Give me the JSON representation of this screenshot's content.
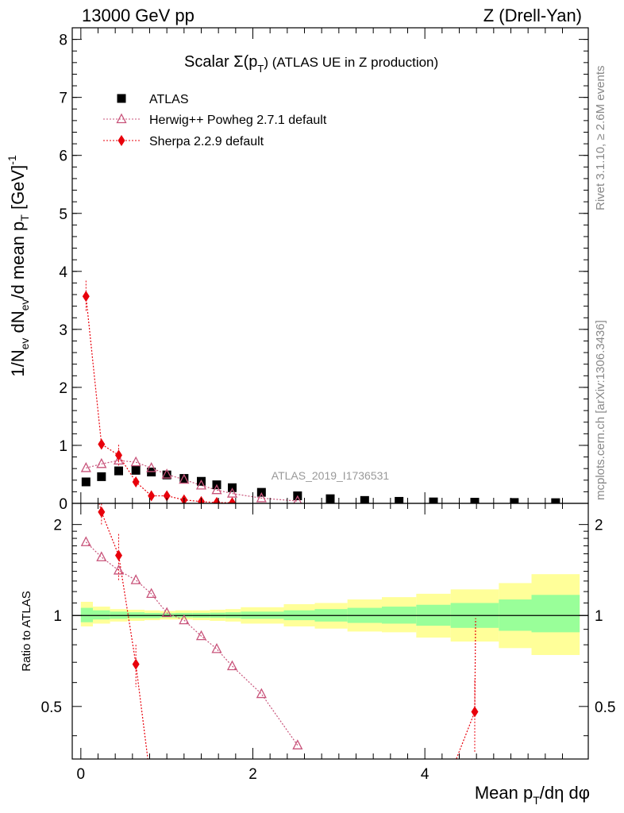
{
  "header": {
    "left": "13000 GeV pp",
    "right": "Z (Drell-Yan)"
  },
  "title": {
    "prefix": "Scalar Σ(p",
    "sub": "T",
    "suffix": ") (ATLAS UE in Z production)"
  },
  "side_labels": {
    "rivet": "Rivet 3.1.10, ≥ 2.6M events",
    "mcplots": "mcplots.cern.ch [arXiv:1306.3436]"
  },
  "analysis_id": "ATLAS_2019_I1736531",
  "main_ylabel": {
    "p1": "1/N",
    "s1": "ev",
    "p2": " dN",
    "s2": "ev",
    "p3": "/d mean p",
    "s3": "T",
    "p4": " [GeV]",
    "sup": "-1"
  },
  "ratio_ylabel": "Ratio to ATLAS",
  "xlabel": {
    "p1": "Mean p",
    "s1": "T",
    "p2": "/dη dφ"
  },
  "legend": [
    {
      "label": "ATLAS",
      "marker": "square",
      "color": "#000000"
    },
    {
      "label": "Herwig++ Powheg 2.7.1 default",
      "marker": "triangle",
      "color": "#c8537a"
    },
    {
      "label": "Sherpa 2.2.9 default",
      "marker": "diamond",
      "color": "#e8000b"
    }
  ],
  "colors": {
    "data": "#000000",
    "herwig": "#c8537a",
    "sherpa": "#e8000b",
    "band_inner": "#99ff99",
    "band_outer": "#ffff99"
  },
  "chart_data": [
    {
      "type": "scatter",
      "panel": "main",
      "xlim": [
        -0.1,
        5.9
      ],
      "ylim": [
        0,
        8.2
      ],
      "yticks": [
        0,
        1,
        2,
        3,
        4,
        5,
        6,
        7,
        8
      ],
      "series": [
        {
          "name": "ATLAS",
          "x": [
            0.06,
            0.24,
            0.44,
            0.64,
            0.82,
            1.0,
            1.2,
            1.4,
            1.58,
            1.76,
            2.1,
            2.52,
            2.9,
            3.3,
            3.7,
            4.1,
            4.58,
            5.04,
            5.52
          ],
          "y": [
            0.37,
            0.46,
            0.56,
            0.57,
            0.54,
            0.49,
            0.43,
            0.38,
            0.32,
            0.27,
            0.19,
            0.13,
            0.08,
            0.05,
            0.035,
            0.025,
            0.02,
            0.015,
            0.012
          ]
        },
        {
          "name": "Herwig++ Powheg 2.7.1 default",
          "x": [
            0.06,
            0.24,
            0.44,
            0.64,
            0.82,
            1.0,
            1.2,
            1.4,
            1.58,
            1.76,
            2.1,
            2.52
          ],
          "y": [
            0.61,
            0.68,
            0.74,
            0.71,
            0.61,
            0.5,
            0.41,
            0.31,
            0.23,
            0.17,
            0.09,
            0.04
          ]
        },
        {
          "name": "Sherpa 2.2.9 default",
          "x": [
            0.06,
            0.24,
            0.44,
            0.64,
            0.82,
            1.0,
            1.2,
            1.4,
            1.58,
            1.76
          ],
          "y": [
            3.57,
            1.02,
            0.83,
            0.37,
            0.13,
            0.13,
            0.06,
            0.03,
            0.015,
            0.01
          ],
          "err": [
            0.27,
            0.08,
            0.18,
            0.04,
            0.02,
            0.02,
            0.01,
            0.01,
            0.01,
            0.01
          ]
        }
      ]
    },
    {
      "type": "line",
      "panel": "ratio",
      "xlim": [
        -0.1,
        5.9
      ],
      "ylim": [
        0.335,
        2.35
      ],
      "yscale": "log",
      "yticks": [
        0.5,
        1,
        2
      ],
      "xticks": [
        0,
        2,
        4
      ],
      "band_edges": [
        0,
        0.14,
        0.34,
        0.54,
        0.74,
        0.92,
        1.1,
        1.3,
        1.5,
        1.68,
        1.86,
        2.36,
        2.72,
        3.1,
        3.5,
        3.9,
        4.3,
        4.86,
        5.24,
        5.8
      ],
      "band_inner": [
        [
          0.95,
          1.06
        ],
        [
          0.97,
          1.04
        ],
        [
          0.975,
          1.03
        ],
        [
          0.98,
          1.025
        ],
        [
          0.98,
          1.02
        ],
        [
          0.985,
          1.018
        ],
        [
          0.985,
          1.02
        ],
        [
          0.983,
          1.02
        ],
        [
          0.982,
          1.022
        ],
        [
          0.98,
          1.025
        ],
        [
          0.975,
          1.03
        ],
        [
          0.965,
          1.04
        ],
        [
          0.955,
          1.05
        ],
        [
          0.945,
          1.06
        ],
        [
          0.94,
          1.07
        ],
        [
          0.925,
          1.085
        ],
        [
          0.91,
          1.1
        ],
        [
          0.89,
          1.13
        ],
        [
          0.88,
          1.17
        ]
      ],
      "band_outer": [
        [
          0.92,
          1.11
        ],
        [
          0.94,
          1.07
        ],
        [
          0.955,
          1.05
        ],
        [
          0.96,
          1.045
        ],
        [
          0.965,
          1.04
        ],
        [
          0.97,
          1.035
        ],
        [
          0.97,
          1.04
        ],
        [
          0.965,
          1.04
        ],
        [
          0.96,
          1.045
        ],
        [
          0.955,
          1.05
        ],
        [
          0.94,
          1.065
        ],
        [
          0.92,
          1.09
        ],
        [
          0.905,
          1.1
        ],
        [
          0.885,
          1.13
        ],
        [
          0.88,
          1.15
        ],
        [
          0.845,
          1.18
        ],
        [
          0.82,
          1.22
        ],
        [
          0.78,
          1.28
        ],
        [
          0.74,
          1.37
        ]
      ],
      "series": [
        {
          "name": "Herwig++ Powheg 2.7.1 default",
          "x": [
            0.06,
            0.24,
            0.44,
            0.64,
            0.82,
            1.0,
            1.2,
            1.4,
            1.58,
            1.76,
            2.1,
            2.52
          ],
          "y": [
            1.75,
            1.56,
            1.41,
            1.31,
            1.18,
            1.02,
            0.965,
            0.855,
            0.775,
            0.68,
            0.55,
            0.372
          ]
        },
        {
          "name": "Sherpa 2.2.9 default",
          "x": [
            0.24,
            0.44,
            0.64,
            4.58
          ],
          "y": [
            2.2,
            1.58,
            0.69,
            0.48
          ],
          "err": [
            0.2,
            0.28,
            0.11,
            0.13
          ]
        }
      ]
    }
  ]
}
